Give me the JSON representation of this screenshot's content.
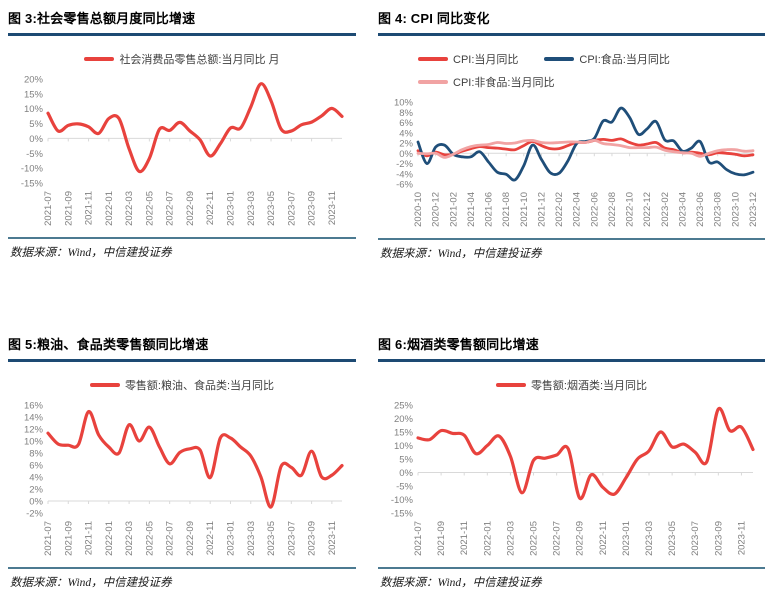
{
  "colors": {
    "accent_red": "#e8423d",
    "navy": "#1f4e79",
    "pink": "#f1a3a3",
    "title_underline": "#1d4a73",
    "source_divider": "#4c7a91",
    "axis_text": "#808080",
    "axis_line": "#d9d9d9"
  },
  "panels": [
    {
      "title": "图 3:社会零售总额月度同比增速",
      "source": "数据来源：Wind，中信建投证券"
    },
    {
      "title": "图 4: CPI 同比变化",
      "source": "数据来源：Wind，中信建投证券"
    },
    {
      "title": "图 5:粮油、食品类零售额同比增速",
      "source": "数据来源：Wind，中信建投证券"
    },
    {
      "title": "图 6:烟酒类零售额同比增速",
      "source": "数据来源：Wind，中信建投证券"
    }
  ],
  "chart_data": [
    {
      "type": "line",
      "title": "图 3:社会零售总额月度同比增速",
      "grid": false,
      "legend_position": "top-center",
      "ylim": [
        -15,
        20
      ],
      "ystep": 5,
      "x": [
        "2021-07",
        "2021-08",
        "2021-09",
        "2021-10",
        "2021-11",
        "2021-12",
        "2022-01",
        "2022-02",
        "2022-03",
        "2022-04",
        "2022-05",
        "2022-06",
        "2022-07",
        "2022-08",
        "2022-09",
        "2022-10",
        "2022-11",
        "2022-12",
        "2023-01",
        "2023-02",
        "2023-03",
        "2023-04",
        "2023-05",
        "2023-06",
        "2023-07",
        "2023-08",
        "2023-09",
        "2023-10",
        "2023-11",
        "2023-12"
      ],
      "x_tick_labels": [
        "2021-07",
        "2021-09",
        "2021-11",
        "2022-01",
        "2022-03",
        "2022-05",
        "2022-07",
        "2022-09",
        "2022-11",
        "2023-01",
        "2023-03",
        "2023-05",
        "2023-07",
        "2023-09",
        "2023-11"
      ],
      "series": [
        {
          "key": "retail-total",
          "name": "社会消费品零售总额:当月同比 月",
          "color": "#e8423d",
          "width": 3.2,
          "values": [
            8.5,
            2.5,
            4.4,
            4.9,
            3.9,
            1.7,
            6.7,
            6.7,
            -3.5,
            -11.1,
            -6.7,
            3.1,
            2.7,
            5.4,
            2.5,
            -0.5,
            -5.9,
            -1.8,
            3.5,
            3.5,
            10.6,
            18.4,
            12.7,
            3.1,
            2.5,
            4.6,
            5.5,
            7.6,
            10.1,
            7.4
          ]
        }
      ]
    },
    {
      "type": "line",
      "title": "图 4: CPI 同比变化",
      "grid": false,
      "legend_position": "top-left",
      "ylim": [
        -6,
        10
      ],
      "ystep": 2,
      "x": [
        "2020-10",
        "2020-11",
        "2020-12",
        "2021-01",
        "2021-02",
        "2021-03",
        "2021-04",
        "2021-05",
        "2021-06",
        "2021-07",
        "2021-08",
        "2021-09",
        "2021-10",
        "2021-11",
        "2021-12",
        "2022-01",
        "2022-02",
        "2022-03",
        "2022-04",
        "2022-05",
        "2022-06",
        "2022-07",
        "2022-08",
        "2022-09",
        "2022-10",
        "2022-11",
        "2022-12",
        "2023-01",
        "2023-02",
        "2023-03",
        "2023-04",
        "2023-05",
        "2023-06",
        "2023-07",
        "2023-08",
        "2023-09",
        "2023-10",
        "2023-11",
        "2023-12"
      ],
      "x_tick_labels": [
        "2020-10",
        "2020-12",
        "2021-02",
        "2021-04",
        "2021-06",
        "2021-08",
        "2021-10",
        "2021-12",
        "2022-02",
        "2022-04",
        "2022-06",
        "2022-08",
        "2022-10",
        "2022-12",
        "2023-02",
        "2023-04",
        "2023-06",
        "2023-08",
        "2023-10",
        "2023-12"
      ],
      "series": [
        {
          "key": "cpi",
          "name": "CPI:当月同比",
          "color": "#e8423d",
          "width": 2.8,
          "values": [
            0.5,
            -0.5,
            0.2,
            -0.3,
            -0.2,
            0.4,
            0.9,
            1.3,
            1.1,
            1.0,
            0.8,
            0.7,
            1.5,
            2.3,
            1.5,
            0.9,
            0.9,
            1.5,
            2.1,
            2.1,
            2.5,
            2.7,
            2.5,
            2.8,
            2.1,
            1.6,
            1.8,
            2.1,
            1.0,
            0.7,
            0.1,
            0.2,
            0.0,
            -0.3,
            0.1,
            0.0,
            -0.2,
            -0.5,
            -0.3
          ]
        },
        {
          "key": "cpi-food",
          "name": "CPI:食品:当月同比",
          "color": "#1f4e79",
          "width": 2.8,
          "values": [
            2.2,
            -2.0,
            1.2,
            1.6,
            -0.2,
            -0.7,
            -0.7,
            0.3,
            -1.7,
            -3.7,
            -4.1,
            -5.2,
            -2.4,
            1.6,
            -1.2,
            -3.8,
            -3.9,
            -1.5,
            1.9,
            2.3,
            2.9,
            6.3,
            6.1,
            8.8,
            7.0,
            3.7,
            4.8,
            6.2,
            2.6,
            2.4,
            0.4,
            1.0,
            2.3,
            -1.7,
            -1.7,
            -3.2,
            -4.0,
            -4.2,
            -3.7
          ]
        },
        {
          "key": "cpi-nonfood",
          "name": "CPI:非食品:当月同比",
          "color": "#f1a3a3",
          "width": 2.8,
          "values": [
            0.0,
            -0.1,
            0.0,
            -0.8,
            -0.2,
            0.7,
            1.3,
            1.6,
            1.7,
            2.1,
            1.9,
            2.0,
            2.4,
            2.5,
            2.1,
            2.0,
            2.1,
            2.2,
            2.2,
            2.1,
            2.5,
            1.9,
            1.7,
            1.5,
            1.1,
            1.1,
            1.1,
            1.2,
            0.6,
            0.3,
            0.1,
            0.0,
            -0.6,
            0.0,
            0.5,
            0.7,
            0.7,
            0.4,
            0.5
          ]
        }
      ]
    },
    {
      "type": "line",
      "title": "图 5:粮油、食品类零售额同比增速",
      "grid": false,
      "legend_position": "top-center",
      "ylim": [
        -2,
        16
      ],
      "ystep": 2,
      "x": [
        "2021-07",
        "2021-08",
        "2021-09",
        "2021-10",
        "2021-11",
        "2021-12",
        "2022-01",
        "2022-02",
        "2022-03",
        "2022-04",
        "2022-05",
        "2022-06",
        "2022-07",
        "2022-08",
        "2022-09",
        "2022-10",
        "2022-11",
        "2022-12",
        "2023-01",
        "2023-02",
        "2023-03",
        "2023-04",
        "2023-05",
        "2023-06",
        "2023-07",
        "2023-08",
        "2023-09",
        "2023-10",
        "2023-11",
        "2023-12"
      ],
      "x_tick_labels": [
        "2021-07",
        "2021-09",
        "2021-11",
        "2022-01",
        "2022-03",
        "2022-05",
        "2022-07",
        "2022-09",
        "2022-11",
        "2023-01",
        "2023-03",
        "2023-05",
        "2023-07",
        "2023-09",
        "2023-11"
      ],
      "series": [
        {
          "key": "grain-oil-food",
          "name": "零售额:粮油、食品类:当月同比",
          "color": "#e8423d",
          "width": 3.2,
          "values": [
            11.3,
            9.5,
            9.3,
            9.4,
            14.9,
            11.0,
            9.0,
            8.0,
            12.7,
            10.0,
            12.3,
            9.0,
            6.2,
            8.1,
            8.7,
            8.5,
            3.9,
            10.5,
            10.5,
            9.0,
            7.5,
            4.0,
            -1.0,
            5.8,
            5.6,
            4.3,
            8.3,
            4.0,
            4.3,
            5.9
          ]
        }
      ]
    },
    {
      "type": "line",
      "title": "图 6:烟酒类零售额同比增速",
      "grid": false,
      "legend_position": "top-center",
      "ylim": [
        -15,
        25
      ],
      "ystep": 5,
      "x": [
        "2021-07",
        "2021-08",
        "2021-09",
        "2021-10",
        "2021-11",
        "2021-12",
        "2022-01",
        "2022-02",
        "2022-03",
        "2022-04",
        "2022-05",
        "2022-06",
        "2022-07",
        "2022-08",
        "2022-09",
        "2022-10",
        "2022-11",
        "2022-12",
        "2023-01",
        "2023-02",
        "2023-03",
        "2023-04",
        "2023-05",
        "2023-06",
        "2023-07",
        "2023-08",
        "2023-09",
        "2023-10",
        "2023-11",
        "2023-12"
      ],
      "x_tick_labels": [
        "2021-07",
        "2021-09",
        "2021-11",
        "2022-01",
        "2022-03",
        "2022-05",
        "2022-07",
        "2022-09",
        "2022-11",
        "2023-01",
        "2023-03",
        "2023-05",
        "2023-07",
        "2023-09",
        "2023-11"
      ],
      "series": [
        {
          "key": "tobacco-alcohol",
          "name": "零售额:烟酒类:当月同比",
          "color": "#e8423d",
          "width": 3.2,
          "values": [
            12.8,
            12.2,
            15.5,
            14.5,
            13.8,
            7.0,
            10.0,
            13.5,
            6.0,
            -7.5,
            4.5,
            5.3,
            6.5,
            8.8,
            -9.5,
            -0.8,
            -5.5,
            -8.0,
            -2.0,
            5.0,
            8.0,
            15.0,
            9.5,
            10.5,
            7.5,
            4.0,
            23.5,
            15.5,
            16.8,
            8.5
          ]
        }
      ]
    }
  ]
}
